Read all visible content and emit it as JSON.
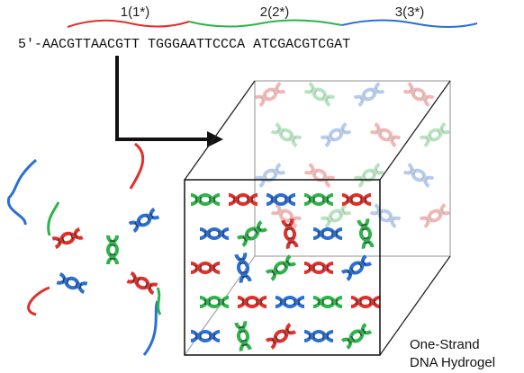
{
  "domains": [
    {
      "label": "1(1*)",
      "sequence": "AACGTTAACGTT"
    },
    {
      "label": "2(2*)",
      "sequence": "TGGGAATTCCCA"
    },
    {
      "label": "3(3*)",
      "sequence": "ATCGACGTCGAT"
    }
  ],
  "sequence_prefix": "5′-",
  "caption": [
    "One-Strand",
    "DNA Hydrogel"
  ]
}
